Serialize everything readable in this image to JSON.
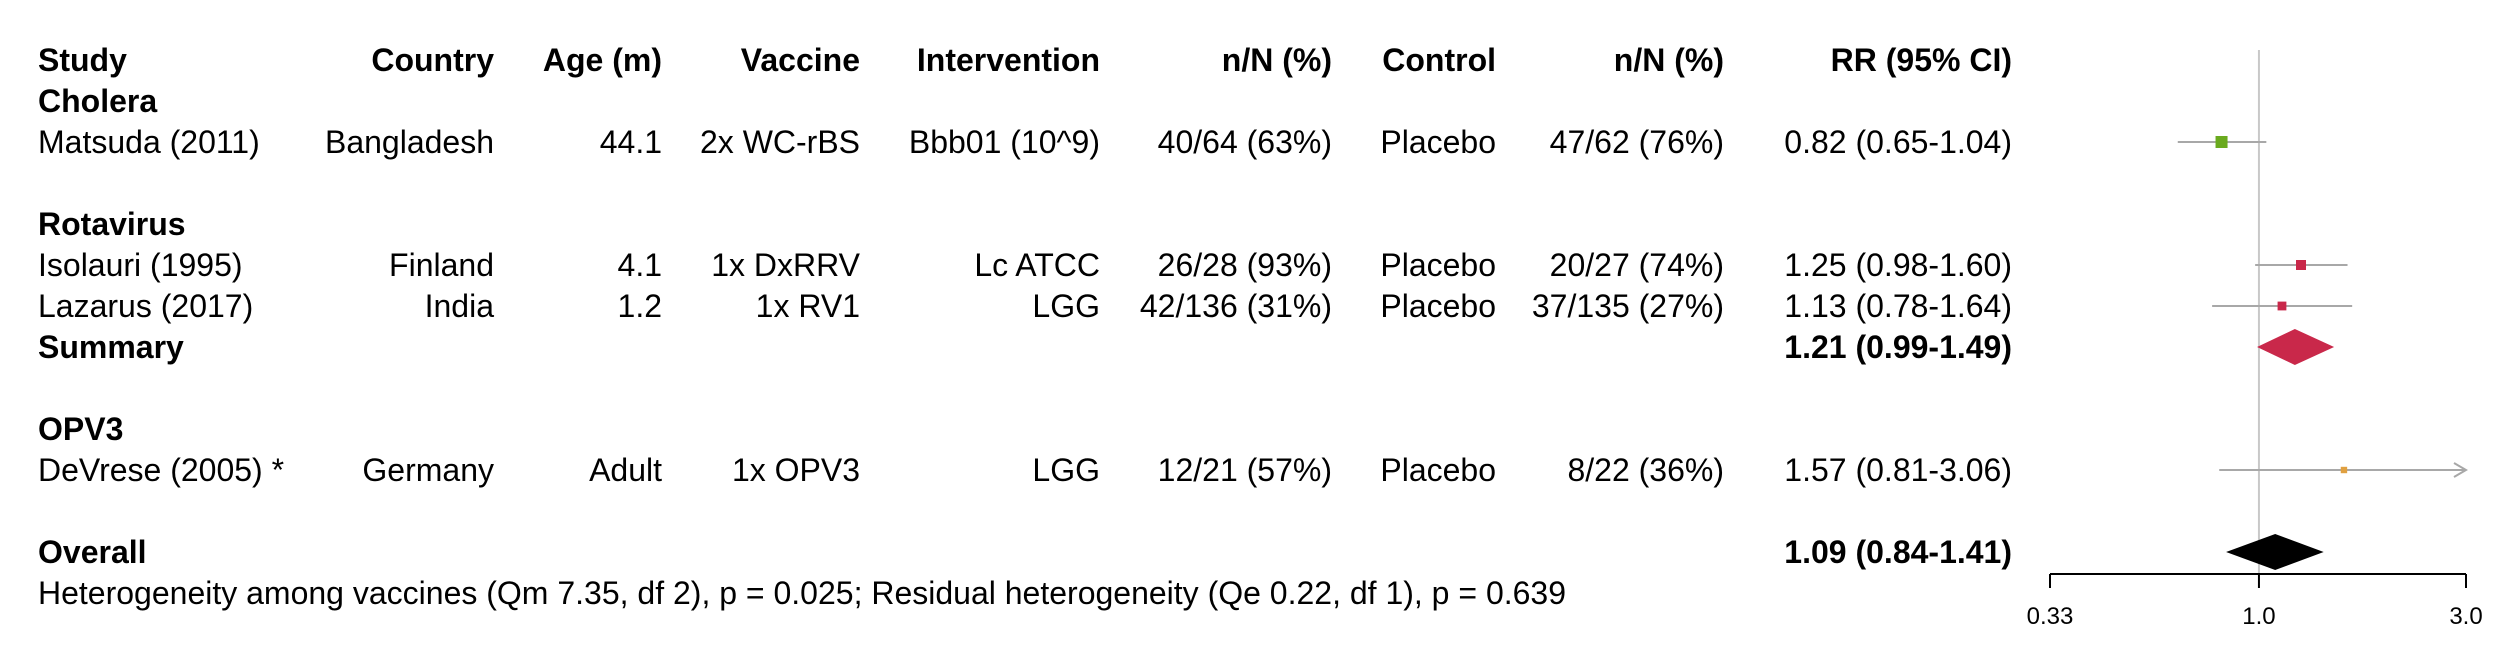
{
  "columns": [
    "Study",
    "Country",
    "Age (m)",
    "Vaccine",
    "Intervention",
    "n/N (%)",
    "Control",
    "n/N (%)",
    "RR (95% CI)"
  ],
  "groups": [
    {
      "label": "Cholera",
      "color": "#6aaa1e",
      "studies": [
        {
          "study": "Matsuda (2011)",
          "country": "Bangladesh",
          "age": "44.1",
          "vaccine": "2x WC-rBS",
          "intervention": "Bbb01 (10^9)",
          "int_n": "40/64 (63%)",
          "control": "Placebo",
          "ctl_n": "47/62 (76%)",
          "rr_text": "0.82 (0.65-1.04)",
          "rr": 0.82,
          "lo": 0.65,
          "hi": 1.04,
          "weight": 1.0
        }
      ]
    },
    {
      "label": "Rotavirus",
      "color": "#c9284a",
      "studies": [
        {
          "study": "Isolauri (1995)",
          "country": "Finland",
          "age": "4.1",
          "vaccine": "1x DxRRV",
          "intervention": "Lc ATCC",
          "int_n": "26/28 (93%)",
          "control": "Placebo",
          "ctl_n": "20/27 (74%)",
          "rr_text": "1.25 (0.98-1.60)",
          "rr": 1.25,
          "lo": 0.98,
          "hi": 1.6,
          "weight": 0.75
        },
        {
          "study": "Lazarus (2017)",
          "country": "India",
          "age": "1.2",
          "vaccine": "1x RV1",
          "intervention": "LGG",
          "int_n": "42/136 (31%)",
          "control": "Placebo",
          "ctl_n": "37/135 (27%)",
          "rr_text": "1.13 (0.78-1.64)",
          "rr": 1.13,
          "lo": 0.78,
          "hi": 1.64,
          "weight": 0.6
        }
      ],
      "summary": {
        "label": "Summary",
        "rr_text": "1.21 (0.99-1.49)",
        "rr": 1.21,
        "lo": 0.99,
        "hi": 1.49
      }
    },
    {
      "label": "OPV3",
      "color": "#e0a040",
      "studies": [
        {
          "study": "DeVrese (2005) *",
          "country": "Germany",
          "age": "Adult",
          "vaccine": "1x OPV3",
          "intervention": "LGG",
          "int_n": "12/21 (57%)",
          "control": "Placebo",
          "ctl_n": "8/22 (36%)",
          "rr_text": "1.57 (0.81-3.06)",
          "rr": 1.57,
          "lo": 0.81,
          "hi": 3.06,
          "weight": 0.3
        }
      ]
    }
  ],
  "overall": {
    "label": "Overall",
    "rr_text": "1.09 (0.84-1.41)",
    "rr": 1.09,
    "lo": 0.84,
    "hi": 1.41,
    "color": "#000000"
  },
  "footnote": "Heterogeneity among vaccines (Qm 7.35, df 2), p = 0.025; Residual heterogeneity (Qe 0.22, df 1), p = 0.639",
  "chart_data": {
    "type": "scatter",
    "subtype": "forest plot",
    "xscale": "log",
    "xlim": [
      0.33,
      3.0
    ],
    "reference_line": 1.0,
    "ticks": [
      0.33,
      1.0,
      3.0
    ],
    "tick_labels": [
      "0.33",
      "1.0",
      "3.0"
    ],
    "grid": false,
    "series": [
      {
        "name": "Cholera",
        "points": [
          {
            "label": "Matsuda (2011)",
            "rr": 0.82,
            "lo": 0.65,
            "hi": 1.04
          }
        ]
      },
      {
        "name": "Rotavirus",
        "points": [
          {
            "label": "Isolauri (1995)",
            "rr": 1.25,
            "lo": 0.98,
            "hi": 1.6
          },
          {
            "label": "Lazarus (2017)",
            "rr": 1.13,
            "lo": 0.78,
            "hi": 1.64
          },
          {
            "label": "Summary",
            "rr": 1.21,
            "lo": 0.99,
            "hi": 1.49
          }
        ]
      },
      {
        "name": "OPV3",
        "points": [
          {
            "label": "DeVrese (2005) *",
            "rr": 1.57,
            "lo": 0.81,
            "hi": 3.06
          }
        ]
      },
      {
        "name": "Overall",
        "points": [
          {
            "label": "Overall",
            "rr": 1.09,
            "lo": 0.84,
            "hi": 1.41
          }
        ]
      }
    ]
  }
}
